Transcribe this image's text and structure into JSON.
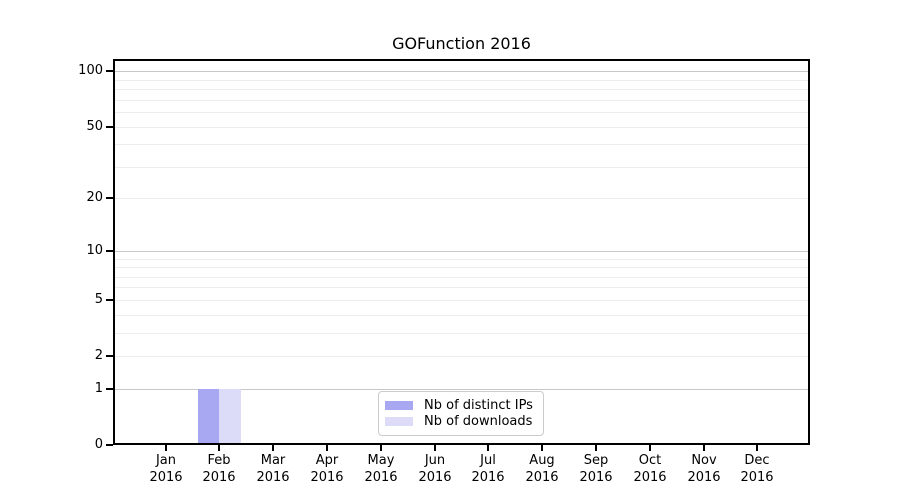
{
  "chart_data": {
    "type": "bar",
    "title": "GOFunction 2016",
    "categories": [
      "Jan",
      "Feb",
      "Mar",
      "Apr",
      "May",
      "Jun",
      "Jul",
      "Aug",
      "Sep",
      "Oct",
      "Nov",
      "Dec"
    ],
    "tick_year": "2016",
    "series": [
      {
        "name": "Nb of distinct IPs",
        "color": "#a8a8f2",
        "values": [
          0,
          1,
          0,
          0,
          0,
          0,
          0,
          0,
          0,
          0,
          0,
          0
        ]
      },
      {
        "name": "Nb of downloads",
        "color": "#dcdcf8",
        "values": [
          0,
          1,
          0,
          0,
          0,
          0,
          0,
          0,
          0,
          0,
          0,
          0
        ]
      }
    ],
    "yscale": "log1p",
    "ylim": [
      0,
      100
    ],
    "y_ticks_labeled": [
      0,
      1,
      2,
      5,
      10,
      20,
      50,
      100
    ],
    "y_major_gridlines": [
      1,
      10,
      100
    ],
    "y_minor_gridlines": [
      2,
      3,
      4,
      5,
      6,
      7,
      8,
      9,
      20,
      30,
      40,
      50,
      60,
      70,
      80,
      90
    ],
    "grid": true,
    "legend": {
      "position": "bottom-center",
      "entries": [
        "Nb of distinct IPs",
        "Nb of downloads"
      ]
    },
    "colors": {
      "major_grid": "#c8c8c8",
      "minor_grid": "#ededed",
      "spine": "#000000",
      "text": "#000000",
      "background": "#ffffff"
    }
  }
}
